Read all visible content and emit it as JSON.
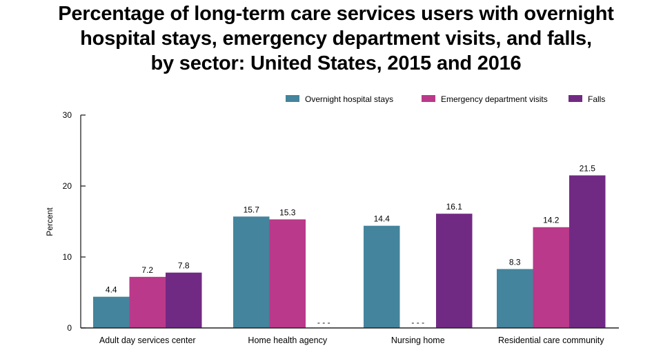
{
  "chart_data": {
    "type": "bar",
    "title_lines": [
      "Percentage of long-term care services users with overnight",
      "hospital stays, emergency department visits, and falls,",
      "by sector: United States, 2015 and 2016"
    ],
    "xlabel": "",
    "ylabel": "Percent",
    "ylim": [
      0,
      30
    ],
    "yticks": [
      0,
      10,
      20,
      30
    ],
    "grid": false,
    "legend_position": "top-right",
    "categories": [
      "Adult day services center",
      "Home health agency",
      "Nursing home",
      "Residential care community"
    ],
    "series": [
      {
        "name": "Overnight hospital stays",
        "color": "#44849C",
        "values": [
          4.4,
          15.7,
          14.4,
          8.3
        ],
        "labels": [
          "4.4",
          "15.7",
          "14.4",
          "8.3"
        ]
      },
      {
        "name": "Emergency department visits",
        "color": "#BA398A",
        "values": [
          7.2,
          15.3,
          null,
          14.2
        ],
        "labels": [
          "7.2",
          "15.3",
          "- - -",
          "14.2"
        ]
      },
      {
        "name": "Falls",
        "color": "#712A84",
        "values": [
          7.8,
          null,
          16.1,
          21.5
        ],
        "labels": [
          "7.8",
          "- - -",
          "16.1",
          "21.5"
        ]
      }
    ],
    "missing_marker": "- - -"
  }
}
